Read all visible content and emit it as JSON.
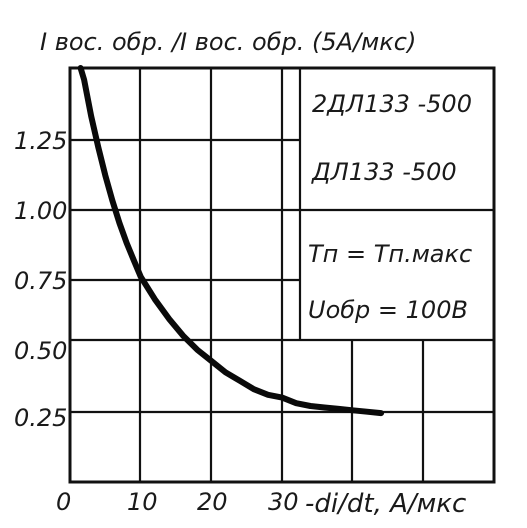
{
  "chart_data": {
    "type": "line",
    "title": "I вос. обр. /I вос. обр. (5A/мкс)",
    "xlabel": "-di/dt, А/мкс",
    "ylabel": "I вос. обр. /I вос. обр. (5A/мкс)",
    "xlim": [
      0,
      45
    ],
    "ylim": [
      0,
      1.5
    ],
    "x_ticks": [
      "0",
      "10",
      "20",
      "30"
    ],
    "y_ticks": [
      "0.25",
      "0.50",
      "0.75",
      "1.00",
      "1.25"
    ],
    "grid": true,
    "series": [
      {
        "x": [
          1.5,
          2,
          3,
          4,
          5,
          6,
          7,
          8,
          9,
          10,
          12,
          14,
          16,
          18,
          20,
          22,
          24,
          26,
          28,
          30,
          32,
          34,
          36,
          38,
          40,
          42,
          44
        ],
        "y": [
          1.5,
          1.43,
          1.3,
          1.19,
          1.09,
          1.0,
          0.92,
          0.85,
          0.79,
          0.73,
          0.65,
          0.58,
          0.52,
          0.47,
          0.43,
          0.39,
          0.36,
          0.33,
          0.31,
          0.3,
          0.28,
          0.27,
          0.265,
          0.26,
          0.255,
          0.25,
          0.245
        ]
      }
    ],
    "annotations": [
      "2ДЛ133 -500",
      "ДЛ133 -500",
      "Tп = Tп.макс",
      "Uобр = 100В"
    ]
  }
}
